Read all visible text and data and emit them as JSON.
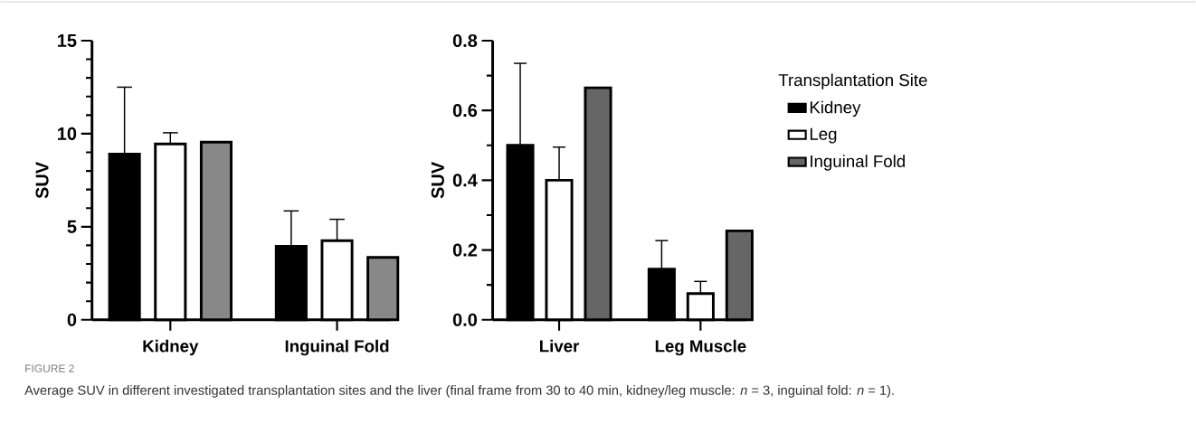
{
  "chart_data": [
    {
      "type": "bar",
      "categories": [
        "Kidney",
        "Inguinal Fold"
      ],
      "ylabel": "SUV",
      "ylim": [
        0,
        15
      ],
      "yticks": [
        0,
        5,
        10,
        15
      ],
      "series": [
        {
          "color": "#000000",
          "values": [
            8.9,
            3.95
          ],
          "errors": [
            [
              8.9,
              12.5
            ],
            [
              3.95,
              5.85
            ]
          ]
        },
        {
          "color": "#ffffff",
          "values": [
            9.45,
            4.25
          ],
          "errors": [
            [
              9.45,
              10.05
            ],
            [
              4.25,
              5.4
            ]
          ]
        },
        {
          "color": "#888888",
          "values": [
            9.55,
            3.35
          ]
        }
      ],
      "annotations": [
        "FIGURE 2",
        "Average SUV in different investigated transplantation sites and the liver (final frame from 30 to 40 min, kidney/leg muscle: *n* = 3, inguinal fold: *n* = 1)."
      ]
    },
    {
      "type": "bar",
      "categories": [
        "Liver",
        "Leg Muscle"
      ],
      "ylabel": "SUV",
      "ylim": [
        0,
        0.8
      ],
      "yticks": [
        {
          "value": 0,
          "label": "0.0"
        },
        0.2,
        0.4,
        0.6,
        0.8
      ],
      "legend": "right",
      "legend_title": "Transplantation Site",
      "series": [
        {
          "name": "Kidney",
          "color": "#000000",
          "values": [
            0.5,
            0.145
          ],
          "errors": [
            [
              0.5,
              0.735
            ],
            [
              0.145,
              0.227
            ]
          ]
        },
        {
          "name": "Leg",
          "color": "#ffffff",
          "values": [
            0.4,
            0.075
          ],
          "errors": [
            [
              0.4,
              0.495
            ],
            [
              0.075,
              0.11
            ]
          ]
        },
        {
          "name": "Inguinal Fold",
          "color": "#666666",
          "values": [
            0.665,
            0.255
          ]
        }
      ]
    }
  ]
}
